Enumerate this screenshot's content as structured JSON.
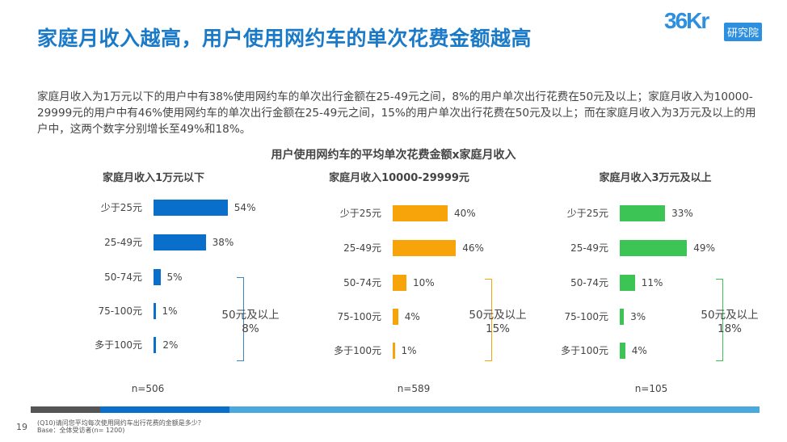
{
  "title": "家庭月收入越高，用户使用网约车的单次花费金额越高",
  "logo": {
    "text": "36Kr",
    "badge": "研究院"
  },
  "summary": "家庭月收入为1万元以下的用户中有38%使用网约车的单次出行金额在25-49元之间，8%的用户单次出行花费在50元及以上；家庭月收入为10000-29999元的用户中有46%使用网约车的单次出行金额在25-49元之间，15%的用户单次出行花费在50元及以上；而在家庭月收入为3万元及以上的用户中，这两个数字分别增长至49%和18%。",
  "chart_title": "用户使用网约车的平均单次花费金额x家庭月收入",
  "chart_data": [
    {
      "type": "bar",
      "orientation": "horizontal",
      "title": "家庭月收入1万元以下",
      "color": "#0a6fcb",
      "categories": [
        "少于25元",
        "25-49元",
        "50-74元",
        "75-100元",
        "多于100元"
      ],
      "values": [
        54,
        38,
        5,
        1,
        2
      ],
      "labels": [
        "54%",
        "38%",
        "5%",
        "1%",
        "2%"
      ],
      "annotation": {
        "label": "50元及以上",
        "value": "8%"
      },
      "n": "n=506"
    },
    {
      "type": "bar",
      "orientation": "horizontal",
      "title": "家庭月收入10000-29999元",
      "color": "#f7a30a",
      "categories": [
        "少于25元",
        "25-49元",
        "50-74元",
        "75-100元",
        "多于100元"
      ],
      "values": [
        40,
        46,
        10,
        4,
        1
      ],
      "labels": [
        "40%",
        "46%",
        "10%",
        "4%",
        "1%"
      ],
      "annotation": {
        "label": "50元及以上",
        "value": "15%"
      },
      "n": "n=589"
    },
    {
      "type": "bar",
      "orientation": "horizontal",
      "title": "家庭月收入3万元及以上",
      "color": "#3cc455",
      "categories": [
        "少于25元",
        "25-49元",
        "50-74元",
        "75-100元",
        "多于100元"
      ],
      "values": [
        33,
        49,
        11,
        3,
        4
      ],
      "labels": [
        "33%",
        "49%",
        "11%",
        "3%",
        "4%"
      ],
      "annotation": {
        "label": "50元及以上",
        "value": "18%"
      },
      "n": "n=105"
    }
  ],
  "bracket_colors": [
    "#3a87c8",
    "#f7a30a",
    "#3cc455"
  ],
  "footer": {
    "page": "19",
    "question": "(Q10)请问您平均每次使用网约车出行花费的金额是多少？",
    "base": "Base：全体受访者(n= 1200)"
  }
}
